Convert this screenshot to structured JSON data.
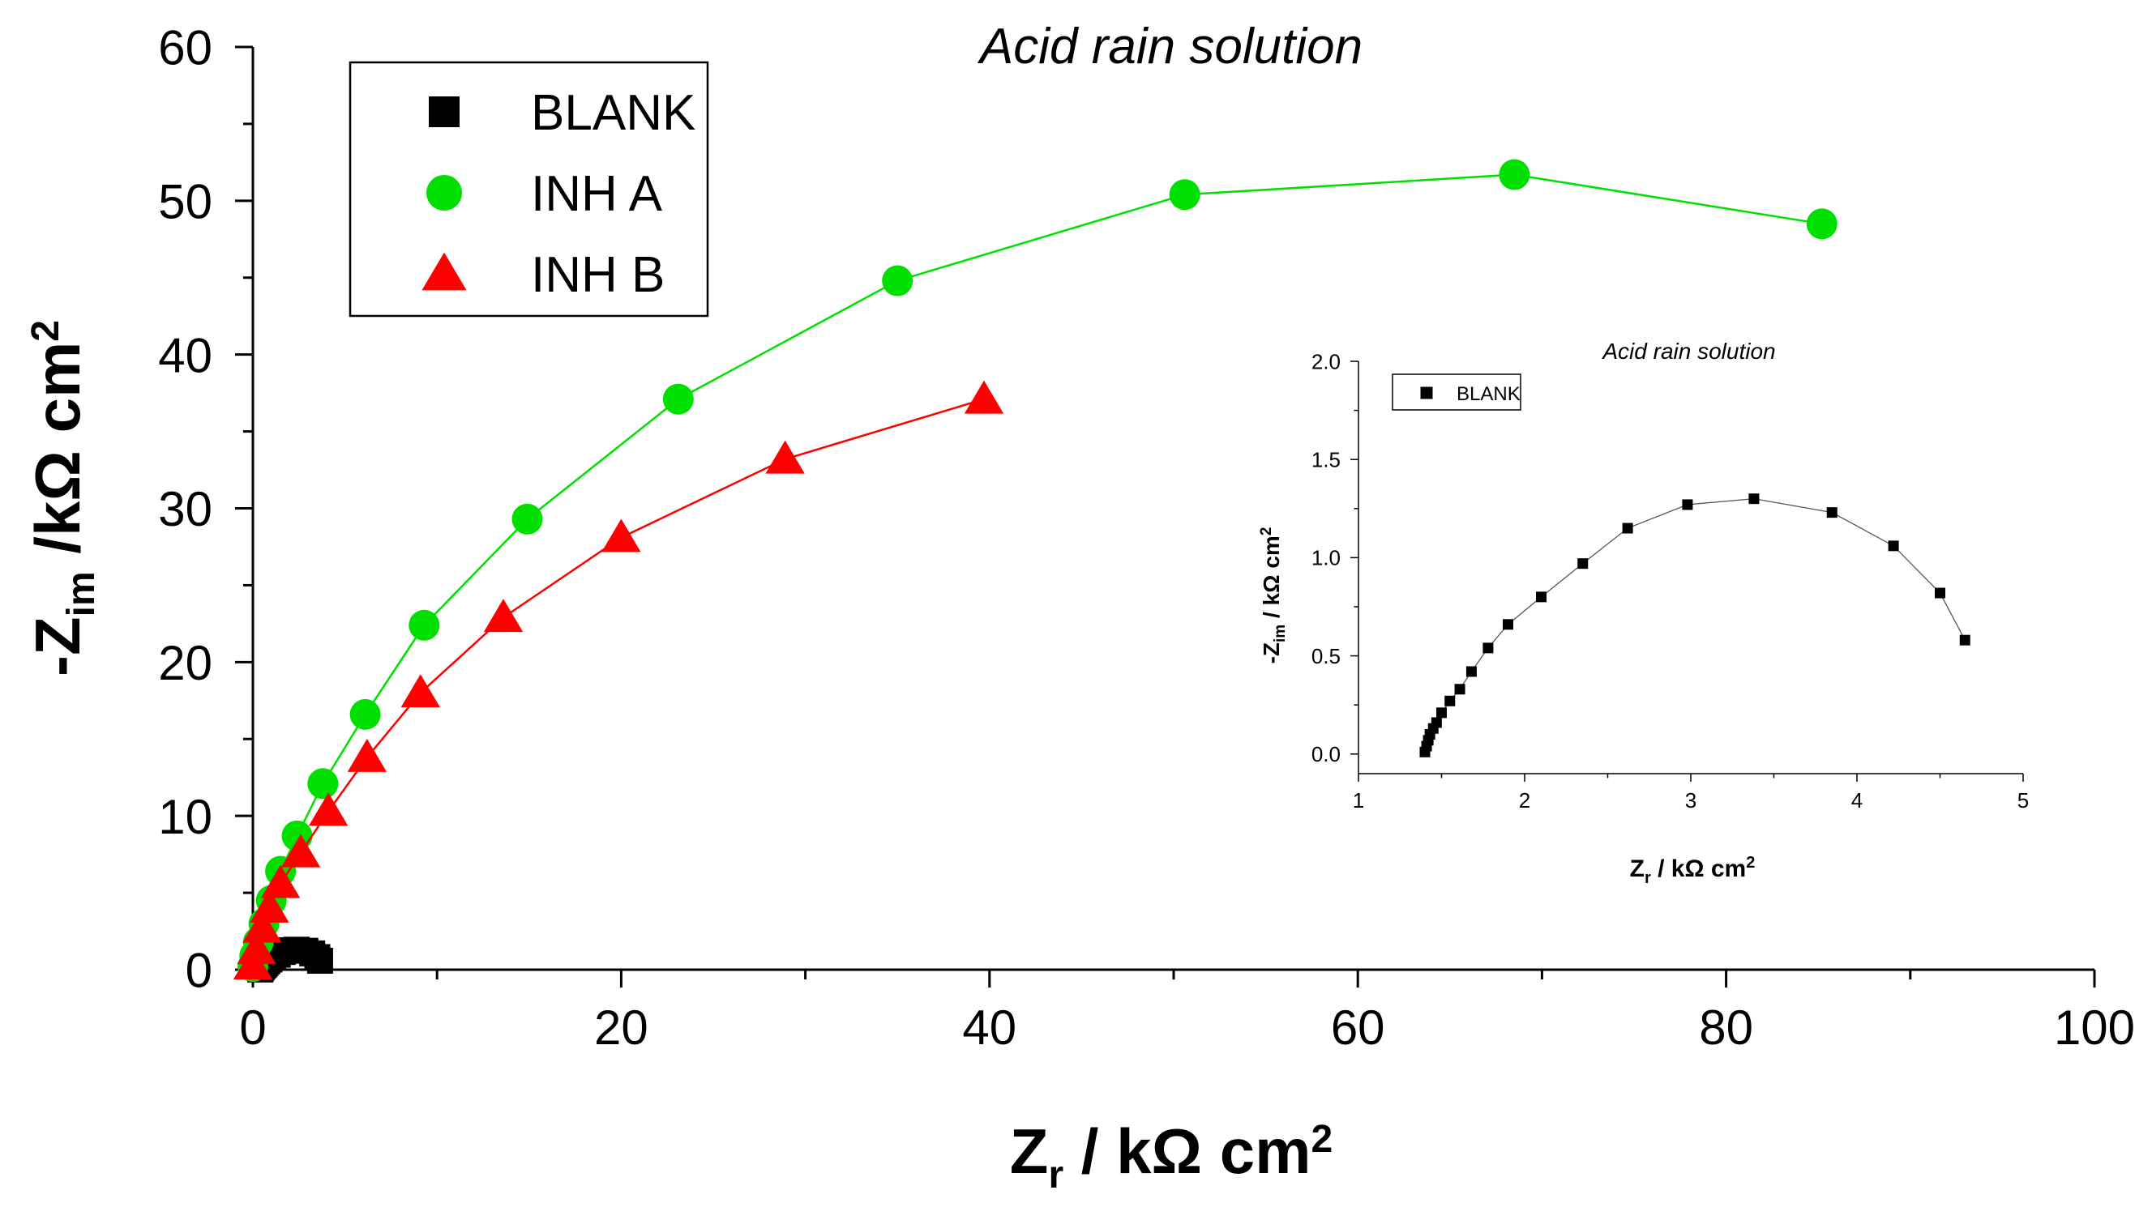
{
  "chart_data": [
    {
      "type": "line",
      "title": "Acid rain solution",
      "xlabel": {
        "main": "Z",
        "sub": "r",
        "rest": " / kΩ cm",
        "sup": "2"
      },
      "ylabel": {
        "pre": "-Z",
        "sub": "im",
        "rest": " /kΩ cm",
        "sup": "2"
      },
      "xlim": [
        0,
        100
      ],
      "ylim": [
        0,
        60
      ],
      "xticks": [
        "0",
        "20",
        "40",
        "60",
        "80",
        "100"
      ],
      "yticks": [
        "0",
        "10",
        "20",
        "30",
        "40",
        "50",
        "60"
      ],
      "legend_position": "top-left",
      "series": [
        {
          "name": "BLANK",
          "marker": "square",
          "color": "#000000",
          "line": false,
          "x": [
            1.4,
            1.41,
            1.42,
            1.43,
            1.45,
            1.47,
            1.5,
            1.55,
            1.61,
            1.68,
            1.78,
            1.9,
            2.1,
            2.35,
            2.62,
            2.98,
            3.38,
            3.85,
            4.22,
            4.5,
            4.65
          ],
          "y": [
            0.01,
            0.04,
            0.07,
            0.1,
            0.13,
            0.16,
            0.21,
            0.27,
            0.33,
            0.42,
            0.54,
            0.66,
            0.8,
            0.97,
            1.15,
            1.27,
            1.3,
            1.23,
            1.06,
            0.82,
            0.58
          ]
        },
        {
          "name": "INH A",
          "marker": "circle",
          "color": "#00e000",
          "line": true,
          "x": [
            0.0,
            0.1,
            0.3,
            0.6,
            1.0,
            1.5,
            2.4,
            3.8,
            6.1,
            9.3,
            14.9,
            23.1,
            35.0,
            50.6,
            68.5,
            85.2
          ],
          "y": [
            0.2,
            0.9,
            1.8,
            3.0,
            4.5,
            6.4,
            8.7,
            12.1,
            16.6,
            22.4,
            29.3,
            37.1,
            44.8,
            50.4,
            51.7,
            48.5
          ]
        },
        {
          "name": "INH B",
          "marker": "triangle",
          "color": "#ff0000",
          "line": true,
          "x": [
            0.0,
            0.2,
            0.5,
            0.9,
            1.5,
            2.6,
            4.1,
            6.2,
            9.1,
            13.6,
            20.0,
            28.9,
            39.7
          ],
          "y": [
            0.3,
            1.3,
            2.7,
            4.0,
            5.6,
            7.6,
            10.3,
            13.8,
            18.0,
            22.9,
            28.1,
            33.2,
            37.1
          ]
        }
      ]
    },
    {
      "type": "line",
      "role": "inset",
      "title": "Acid rain solution",
      "xlabel": {
        "main": "Z",
        "sub": "r",
        "rest": " / kΩ cm",
        "sup": "2"
      },
      "ylabel": {
        "pre": "-Z",
        "sub": "im",
        "rest": " / kΩ cm",
        "sup": "2"
      },
      "xlim": [
        1,
        5
      ],
      "ylim": [
        -0.1,
        2.0
      ],
      "xticks": [
        "1",
        "2",
        "3",
        "4",
        "5"
      ],
      "yticks": [
        "0.0",
        "0.5",
        "1.0",
        "1.5",
        "2.0"
      ],
      "legend_position": "top-left",
      "series": [
        {
          "name": "BLANK",
          "marker": "square",
          "color": "#000000",
          "line": true,
          "line_color": "#555555",
          "x": [
            1.4,
            1.41,
            1.42,
            1.43,
            1.45,
            1.47,
            1.5,
            1.55,
            1.61,
            1.68,
            1.78,
            1.9,
            2.1,
            2.35,
            2.62,
            2.98,
            3.38,
            3.85,
            4.22,
            4.5,
            4.65
          ],
          "y": [
            0.01,
            0.04,
            0.07,
            0.1,
            0.13,
            0.16,
            0.21,
            0.27,
            0.33,
            0.42,
            0.54,
            0.66,
            0.8,
            0.97,
            1.15,
            1.27,
            1.3,
            1.23,
            1.06,
            0.82,
            0.58
          ]
        }
      ]
    }
  ]
}
